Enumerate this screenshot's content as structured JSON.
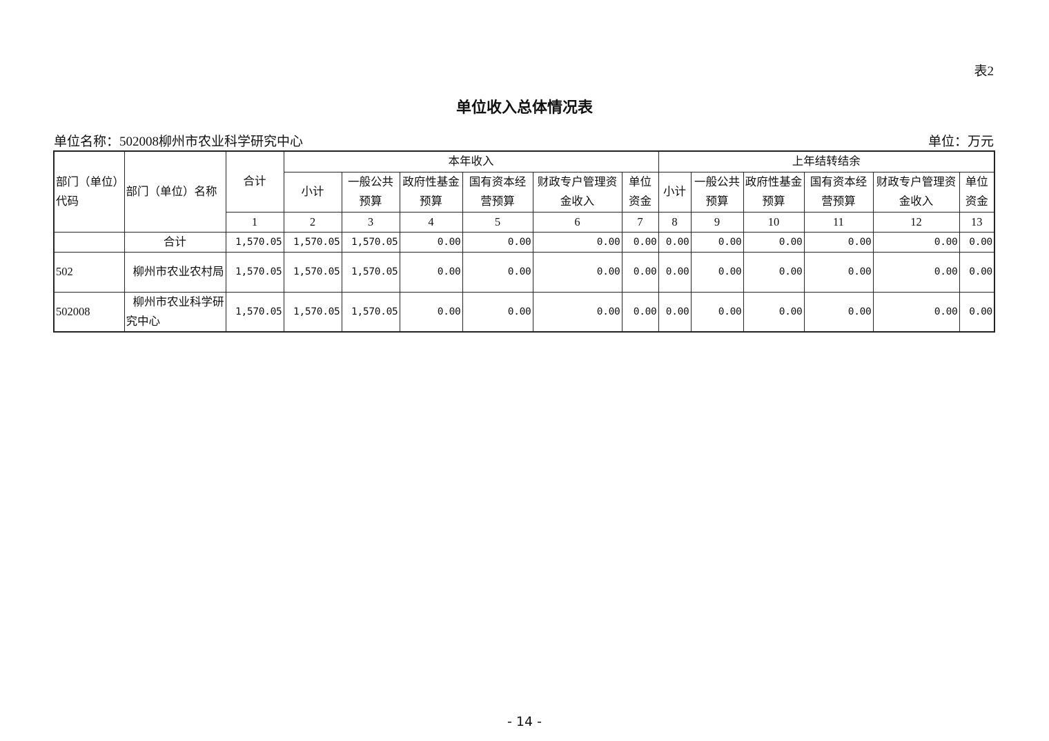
{
  "table_label": "表2",
  "title": "单位收入总体情况表",
  "unit_name": "单位名称：502008柳州市农业科学研究中心",
  "unit": "单位：万元",
  "headers": {
    "code": "部门（单位）代码",
    "name": "部门（单位）名称",
    "total": "合计",
    "group_current": "本年收入",
    "group_prior": "上年结转结余",
    "current": [
      "小计",
      "一般公共预算",
      "政府性基金预算",
      "国有资本经营预算",
      "财政专户管理资金收入",
      "单位资金"
    ],
    "prior": [
      "小计",
      "一般公共预算",
      "政府性基金预算",
      "国有资本经营预算",
      "财政专户管理资金收入",
      "单位资金"
    ],
    "numbers": [
      "1",
      "2",
      "3",
      "4",
      "5",
      "6",
      "7",
      "8",
      "9",
      "10",
      "11",
      "12",
      "13"
    ]
  },
  "rows": [
    {
      "code": "",
      "name": "合计",
      "values": [
        "1,570.05",
        "1,570.05",
        "1,570.05",
        "0.00",
        "0.00",
        "0.00",
        "0.00",
        "0.00",
        "0.00",
        "0.00",
        "0.00",
        "0.00",
        "0.00"
      ]
    },
    {
      "code": "502",
      "name": "柳州市农业农村局",
      "values": [
        "1,570.05",
        "1,570.05",
        "1,570.05",
        "0.00",
        "0.00",
        "0.00",
        "0.00",
        "0.00",
        "0.00",
        "0.00",
        "0.00",
        "0.00",
        "0.00"
      ]
    },
    {
      "code": "502008",
      "name": "柳州市农业科学研究中心",
      "values": [
        "1,570.05",
        "1,570.05",
        "1,570.05",
        "0.00",
        "0.00",
        "0.00",
        "0.00",
        "0.00",
        "0.00",
        "0.00",
        "0.00",
        "0.00",
        "0.00"
      ]
    }
  ],
  "page_number": "- 14 -"
}
